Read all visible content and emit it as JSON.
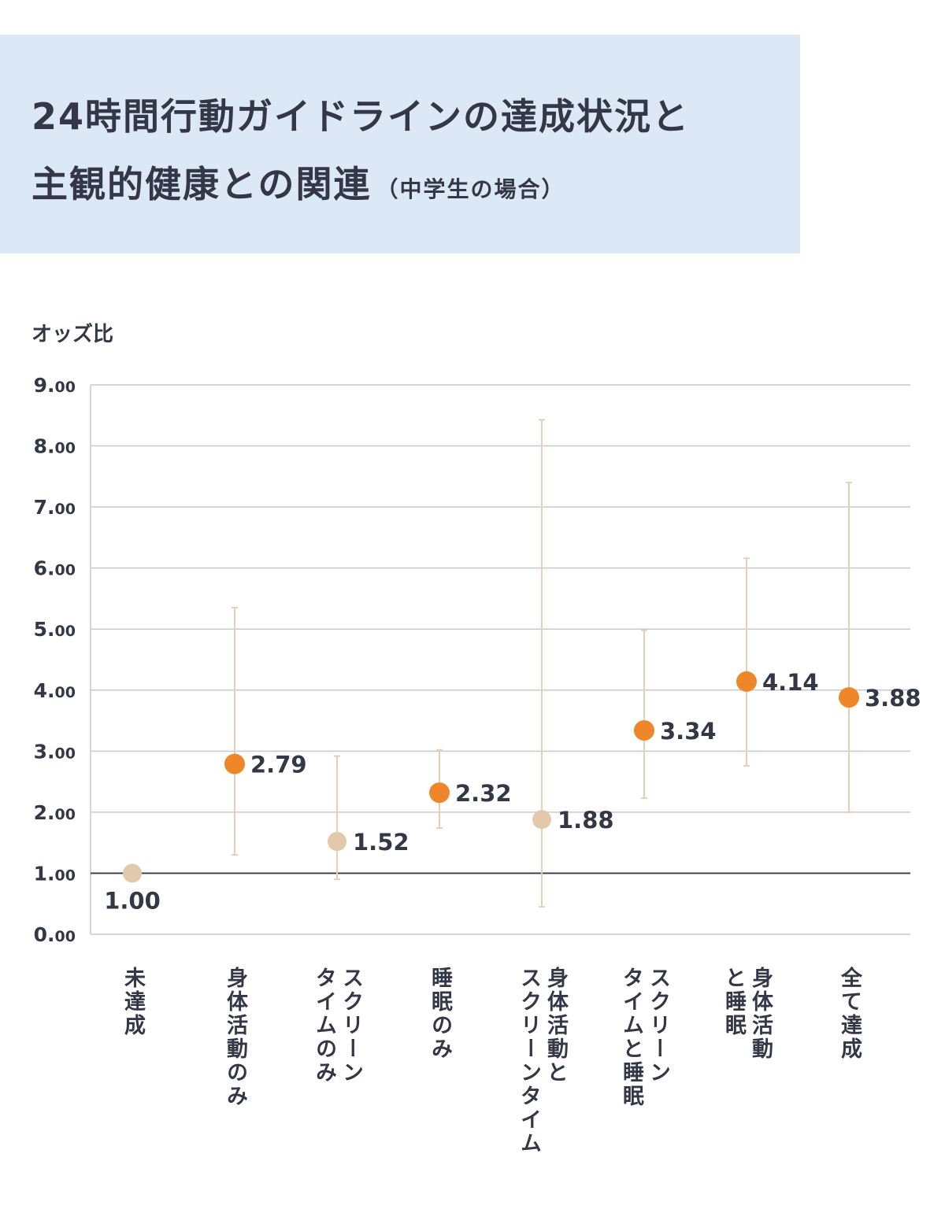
{
  "header": {
    "title_line1": "24時間行動ガイドラインの達成状況と",
    "title_line2": "主観的健康との関連",
    "subtitle": "（中学生の場合）"
  },
  "colors": {
    "header_bg": "#dde8f6",
    "highlight": "#f0862a",
    "muted": "#e3c9ab",
    "errorbar": "#e7cfb6",
    "grid": "#c9c9cd",
    "reference_line": "#333746",
    "text": "#333746"
  },
  "chart_data": {
    "type": "scatter",
    "title": "24時間行動ガイドラインの達成状況と主観的健康との関連（中学生の場合）",
    "ylabel": "オッズ比",
    "ylim": [
      0,
      9
    ],
    "yticks": [
      {
        "int": "0.",
        "dec": "00",
        "value": 0
      },
      {
        "int": "1.",
        "dec": "00",
        "value": 1
      },
      {
        "int": "2.",
        "dec": "00",
        "value": 2
      },
      {
        "int": "3.",
        "dec": "00",
        "value": 3
      },
      {
        "int": "4.",
        "dec": "00",
        "value": 4
      },
      {
        "int": "5.",
        "dec": "00",
        "value": 5
      },
      {
        "int": "6.",
        "dec": "00",
        "value": 6
      },
      {
        "int": "7.",
        "dec": "00",
        "value": 7
      },
      {
        "int": "8.",
        "dec": "00",
        "value": 8
      },
      {
        "int": "9.",
        "dec": "00",
        "value": 9
      }
    ],
    "grid": true,
    "reference_line": 1.0,
    "points": [
      {
        "category": "未達成",
        "label": "1.00",
        "value": 1.0,
        "lower": null,
        "upper": null,
        "significant": false
      },
      {
        "category": "身体活動のみ",
        "label": "2.79",
        "value": 2.79,
        "lower": 1.3,
        "upper": 5.35,
        "significant": true
      },
      {
        "category": "スクリーン\nタイムのみ",
        "label": "1.52",
        "value": 1.52,
        "lower": 0.9,
        "upper": 2.92,
        "significant": false
      },
      {
        "category": "睡眠のみ",
        "label": "2.32",
        "value": 2.32,
        "lower": 1.74,
        "upper": 3.02,
        "significant": true
      },
      {
        "category": "身体活動と\nスクリーンタイム",
        "label": "1.88",
        "value": 1.88,
        "lower": 0.45,
        "upper": 8.43,
        "significant": false
      },
      {
        "category": "スクリーン\nタイムと睡眠",
        "label": "3.34",
        "value": 3.34,
        "lower": 2.23,
        "upper": 4.98,
        "significant": true
      },
      {
        "category": "身体活動\nと睡眠",
        "label": "4.14",
        "value": 4.14,
        "lower": 2.76,
        "upper": 6.16,
        "significant": true
      },
      {
        "category": "全て達成",
        "label": "3.88",
        "value": 3.88,
        "lower": 2.0,
        "upper": 7.4,
        "significant": true
      }
    ]
  }
}
